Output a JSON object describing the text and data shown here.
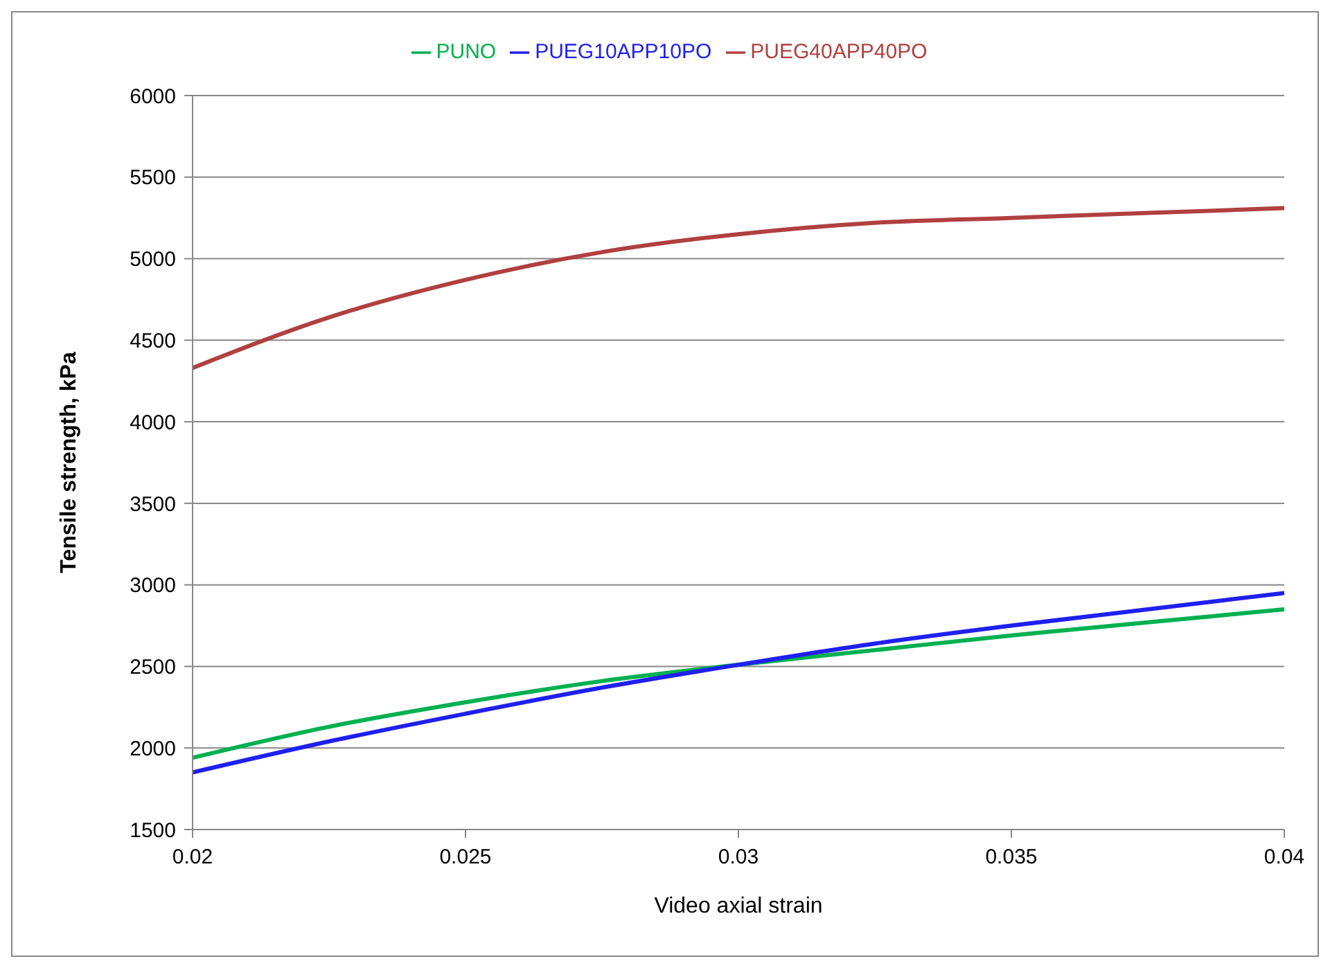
{
  "chart_data": {
    "type": "line",
    "xlabel": "Video axial strain",
    "ylabel": "Tensile strength, kPa",
    "x": [
      0.02,
      0.0225,
      0.025,
      0.0275,
      0.03,
      0.0325,
      0.035,
      0.0375,
      0.04
    ],
    "series": [
      {
        "name": "PUNO",
        "color": "#00b050",
        "values": [
          1940,
          2130,
          2280,
          2410,
          2510,
          2600,
          2690,
          2770,
          2850
        ]
      },
      {
        "name": "PUEG10APP10PO",
        "color": "#1f1fef",
        "values": [
          1850,
          2040,
          2210,
          2370,
          2510,
          2640,
          2750,
          2850,
          2950
        ]
      },
      {
        "name": "PUEG40APP40PO",
        "color": "#b04040",
        "values": [
          4330,
          4640,
          4870,
          5040,
          5150,
          5220,
          5250,
          5280,
          5310
        ]
      }
    ],
    "xlim": [
      0.02,
      0.04
    ],
    "xticks": [
      0.02,
      0.025,
      0.03,
      0.035,
      0.04
    ],
    "ylim": [
      1500,
      6000
    ],
    "yticks": [
      1500,
      2000,
      2500,
      3000,
      3500,
      4000,
      4500,
      5000,
      5500,
      6000
    ],
    "grid": "y",
    "legend": "top",
    "marker": "none",
    "line_style": "solid"
  }
}
